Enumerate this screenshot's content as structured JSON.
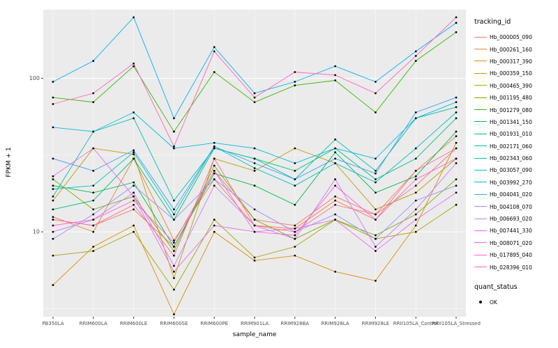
{
  "chart_data": {
    "type": "line",
    "title": "",
    "xlabel": "sample_name",
    "ylabel": "FPKM + 1",
    "yscale": "log10",
    "ylim": [
      2.8,
      280
    ],
    "yticks": [
      10,
      100
    ],
    "ytick_labels": [
      "10",
      "100"
    ],
    "grid": true,
    "panel_bg": "#EBEBEB",
    "grid_color": "#FFFFFF",
    "point_color": "#000000",
    "tick_text_color": "#4D4D4D",
    "legend_title": "tracking_id",
    "legend_position": "right",
    "legend2_title": "quant_status",
    "legend2_items": [
      {
        "label": "OK",
        "marker": "point",
        "color": "#000000"
      }
    ],
    "categories": [
      "PB350LA",
      "RRIM600LA",
      "RRIM600LE",
      "RRIM600SE",
      "RRIM600PE",
      "RRIM901LA",
      "RRIM928BA",
      "RRIM928LA",
      "RRIM928LE",
      "RRII105LA_Control",
      "RRII105LA_Stressed"
    ],
    "series": [
      {
        "name": "Hb_000005_090",
        "color": "#F8766D",
        "values": [
          12,
          11,
          14,
          8,
          25,
          12,
          11,
          17,
          13,
          20,
          35
        ]
      },
      {
        "name": "Hb_000261_160",
        "color": "#EA8331",
        "values": [
          12.5,
          10,
          30,
          8.8,
          22,
          11,
          10.5,
          16,
          12,
          25,
          42
        ]
      },
      {
        "name": "Hb_000317_390",
        "color": "#D89000",
        "values": [
          4.5,
          8,
          11,
          2.9,
          10,
          6.5,
          7,
          5.5,
          4.8,
          11,
          38
        ]
      },
      {
        "name": "Hb_000359_150",
        "color": "#C09B00",
        "values": [
          16,
          35,
          32,
          5,
          30,
          25,
          35,
          28,
          14,
          18,
          30
        ]
      },
      {
        "name": "Hb_000465_390",
        "color": "#A3A500",
        "values": [
          7,
          7.5,
          10,
          4.2,
          12,
          6.8,
          8,
          12,
          9,
          10,
          15
        ]
      },
      {
        "name": "Hb_001195_480",
        "color": "#7CAE00",
        "values": [
          22,
          14,
          17,
          7.5,
          27,
          12,
          9,
          12,
          9.5,
          13,
          22
        ]
      },
      {
        "name": "Hb_001279_080",
        "color": "#39B600",
        "values": [
          75,
          70,
          120,
          45,
          110,
          70,
          90,
          97,
          60,
          130,
          200
        ]
      },
      {
        "name": "Hb_001341_150",
        "color": "#00BB4E",
        "values": [
          20,
          18,
          21,
          8,
          24,
          20,
          15,
          33,
          18,
          23,
          45
        ]
      },
      {
        "name": "Hb_001931_010",
        "color": "#00BF7D",
        "values": [
          14,
          16,
          30,
          12,
          35,
          30,
          25,
          35,
          22,
          30,
          55
        ]
      },
      {
        "name": "Hb_002171_060",
        "color": "#00C1A3",
        "values": [
          17,
          45,
          55,
          16,
          35,
          30,
          22,
          40,
          25,
          55,
          65
        ]
      },
      {
        "name": "Hb_002343_060",
        "color": "#00BFC4",
        "values": [
          19,
          20,
          33,
          13,
          36,
          26,
          20,
          28,
          21,
          35,
          60
        ]
      },
      {
        "name": "Hb_003057_090",
        "color": "#00BAE0",
        "values": [
          48,
          45,
          60,
          35,
          38,
          35,
          28,
          35,
          30,
          55,
          70
        ]
      },
      {
        "name": "Hb_003992_270",
        "color": "#00B0F6",
        "values": [
          95,
          130,
          250,
          55,
          160,
          80,
          95,
          120,
          95,
          150,
          230
        ]
      },
      {
        "name": "Hb_004041_020",
        "color": "#35A2FF",
        "values": [
          30,
          25,
          34,
          14,
          36,
          28,
          22,
          30,
          24,
          60,
          75
        ]
      },
      {
        "name": "Hb_004108_070",
        "color": "#9590FF",
        "values": [
          9,
          13,
          20,
          12,
          22,
          14,
          10,
          13,
          9,
          16,
          20
        ]
      },
      {
        "name": "Hb_006693_020",
        "color": "#C77CFF",
        "values": [
          10,
          12,
          18,
          6,
          20,
          11,
          9,
          22,
          8,
          14,
          28
        ]
      },
      {
        "name": "Hb_007441_330",
        "color": "#E76BF3",
        "values": [
          23,
          35,
          17,
          5.5,
          11,
          10,
          10.5,
          12,
          7.5,
          12,
          18
        ]
      },
      {
        "name": "Hb_008071_020",
        "color": "#FA62DB",
        "values": [
          11,
          12,
          16,
          8.5,
          25,
          10,
          9.5,
          20,
          12,
          22,
          30
        ]
      },
      {
        "name": "Hb_017895_040",
        "color": "#FF62BC",
        "values": [
          68,
          80,
          125,
          36,
          150,
          75,
          110,
          105,
          80,
          140,
          250
        ]
      },
      {
        "name": "Hb_028396_010",
        "color": "#FF6A98",
        "values": [
          12,
          11,
          15,
          7,
          30,
          11,
          10,
          15,
          13,
          25,
          35
        ]
      }
    ]
  }
}
